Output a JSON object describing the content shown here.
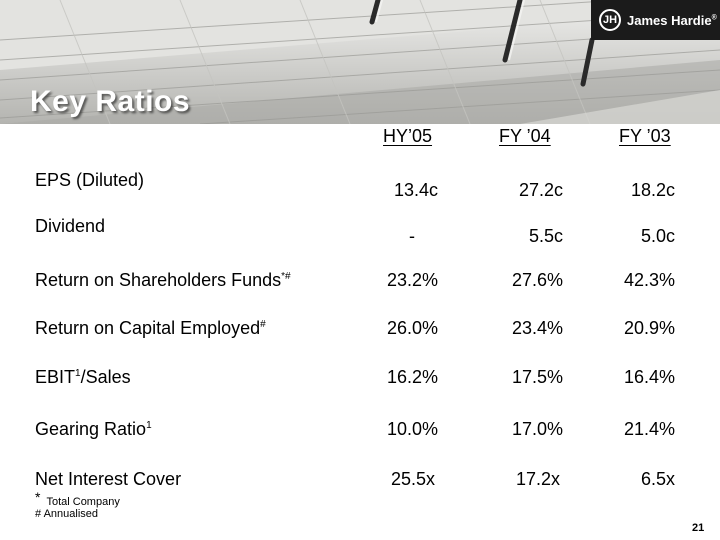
{
  "slide": {
    "title": "Key Ratios",
    "page_number": "21"
  },
  "logo": {
    "mark": "JH",
    "text": "James Hardie",
    "registered": "®"
  },
  "table": {
    "columns": [
      "HY’05",
      "FY ’04",
      "FY ’03"
    ],
    "rows": [
      {
        "label": "EPS (Diluted)",
        "sup": "",
        "values": [
          "13.4c",
          "27.2c",
          "18.2c"
        ]
      },
      {
        "label": "Dividend",
        "sup": "",
        "values": [
          "-",
          "5.5c",
          "5.0c"
        ]
      },
      {
        "label": "Return on Shareholders Funds",
        "sup": "*#",
        "values": [
          "23.2%",
          "27.6%",
          "42.3%"
        ]
      },
      {
        "label": "Return on Capital Employed",
        "sup": "#",
        "values": [
          "26.0%",
          "23.4%",
          "20.9%"
        ]
      },
      {
        "label_pre": "EBIT",
        "sup": "1",
        "label_post": "/Sales",
        "values": [
          "16.2%",
          "17.5%",
          "16.4%"
        ]
      },
      {
        "label": "Gearing Ratio",
        "sup": "1",
        "values": [
          "10.0%",
          "17.0%",
          "21.4%"
        ]
      },
      {
        "label": "Net Interest Cover",
        "sup": "",
        "values": [
          "25.5x",
          "17.2x",
          "6.5x"
        ]
      }
    ]
  },
  "footnotes": {
    "star_symbol": "*",
    "star_text": "Total Company",
    "hash_text": "# Annualised"
  }
}
